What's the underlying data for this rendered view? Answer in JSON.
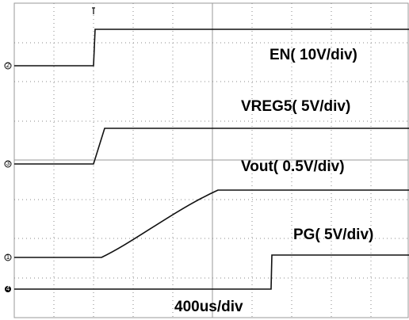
{
  "labels": {
    "en": "EN( 10V/div)",
    "vreg5": "VREG5( 5V/div)",
    "vout": "Vout( 0.5V/div)",
    "pg": "PG( 5V/div)",
    "timebase": "400us/div"
  },
  "channels": {
    "en": "2",
    "vreg5": "3",
    "vout": "1",
    "pg": "4"
  }
}
